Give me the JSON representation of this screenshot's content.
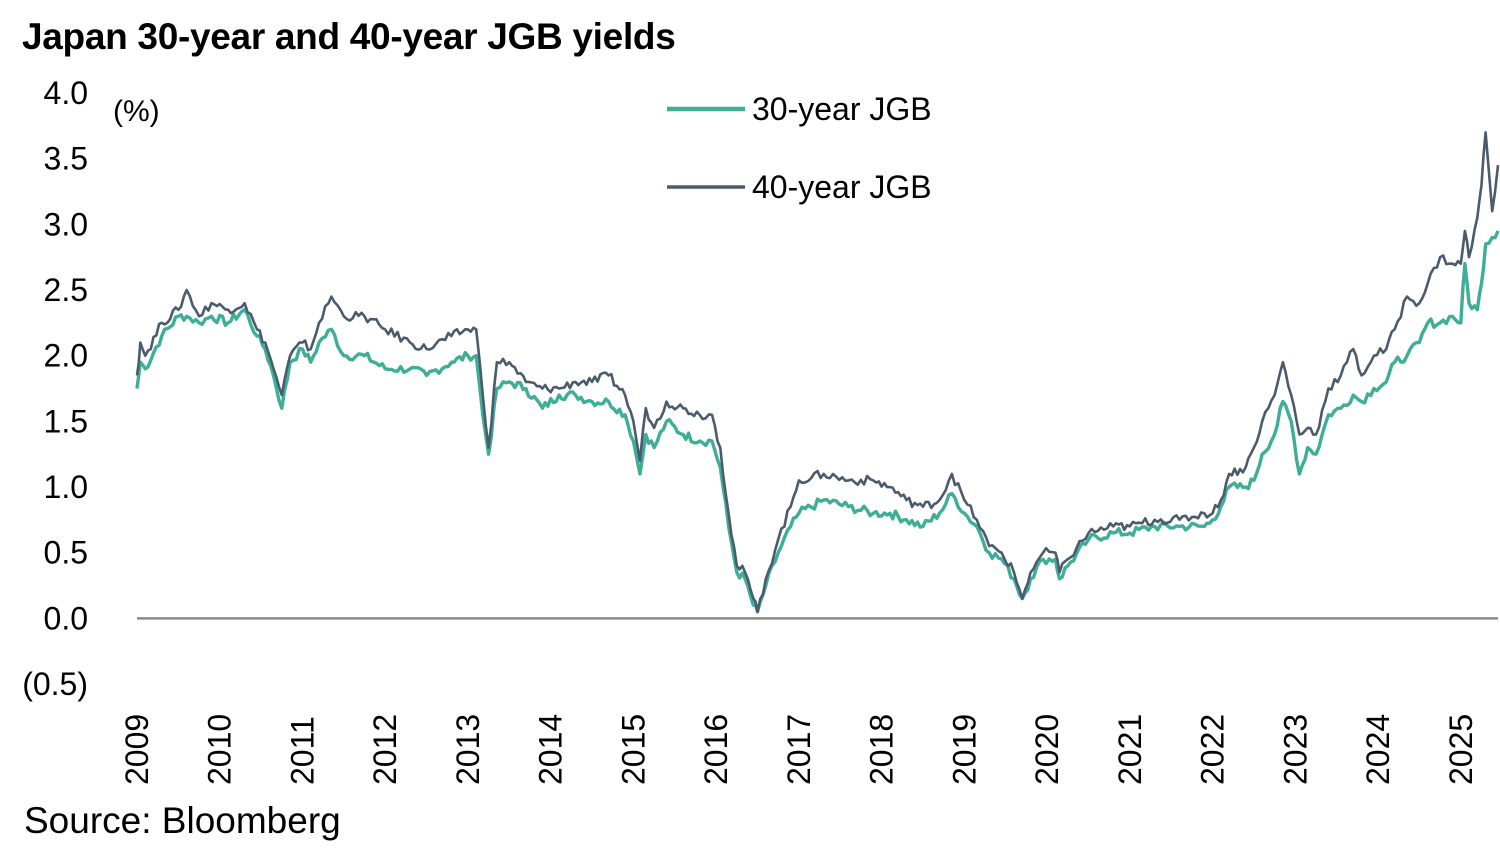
{
  "title": "Japan 30-year and 40-year JGB yields",
  "source": "Source: Bloomberg",
  "chart_data": {
    "type": "line",
    "title": "Japan 30-year and 40-year JGB yields",
    "ylabel": "(%)",
    "xlabel": "",
    "ylim": [
      -0.5,
      4.0
    ],
    "xlim": [
      2009.0,
      2025.45
    ],
    "y_ticks": [
      "4.0",
      "3.5",
      "3.0",
      "2.5",
      "2.0",
      "1.5",
      "1.0",
      "0.5",
      "0.0",
      "(0.5)"
    ],
    "y_tick_values": [
      4.0,
      3.5,
      3.0,
      2.5,
      2.0,
      1.5,
      1.0,
      0.5,
      0.0,
      -0.5
    ],
    "x_ticks": [
      "2009",
      "2010",
      "2011",
      "2012",
      "2013",
      "2014",
      "2015",
      "2016",
      "2017",
      "2018",
      "2019",
      "2020",
      "2021",
      "2022",
      "2023",
      "2024",
      "2025"
    ],
    "x_tick_values": [
      2009,
      2010,
      2011,
      2012,
      2013,
      2014,
      2015,
      2016,
      2017,
      2018,
      2019,
      2020,
      2021,
      2022,
      2023,
      2024,
      2025
    ],
    "grid": false,
    "legend_position": "top-center",
    "series": [
      {
        "name": "30-year JGB",
        "color": "#3fae96",
        "x": [
          2009.0,
          2009.04,
          2009.1,
          2009.3,
          2009.5,
          2009.6,
          2009.75,
          2009.9,
          2010.1,
          2010.3,
          2010.45,
          2010.55,
          2010.65,
          2010.75,
          2010.85,
          2011.0,
          2011.1,
          2011.2,
          2011.35,
          2011.5,
          2011.75,
          2012.0,
          2012.3,
          2012.5,
          2012.8,
          2013.0,
          2013.1,
          2013.18,
          2013.25,
          2013.35,
          2013.5,
          2013.7,
          2013.9,
          2014.1,
          2014.3,
          2014.5,
          2014.7,
          2014.9,
          2015.0,
          2015.08,
          2015.15,
          2015.25,
          2015.4,
          2015.6,
          2015.8,
          2015.95,
          2016.05,
          2016.15,
          2016.25,
          2016.35,
          2016.45,
          2016.5,
          2016.6,
          2016.75,
          2016.9,
          2017.0,
          2017.3,
          2017.6,
          2017.9,
          2018.1,
          2018.3,
          2018.5,
          2018.7,
          2018.85,
          2019.0,
          2019.15,
          2019.3,
          2019.45,
          2019.6,
          2019.7,
          2019.8,
          2019.95,
          2020.1,
          2020.15,
          2020.25,
          2020.5,
          2020.8,
          2021.0,
          2021.3,
          2021.6,
          2021.9,
          2022.0,
          2022.1,
          2022.2,
          2022.4,
          2022.5,
          2022.6,
          2022.75,
          2022.85,
          2022.95,
          2023.05,
          2023.15,
          2023.25,
          2023.4,
          2023.55,
          2023.7,
          2023.8,
          2023.95,
          2024.1,
          2024.2,
          2024.35,
          2024.5,
          2024.6,
          2024.75,
          2024.9,
          2025.0,
          2025.05,
          2025.1,
          2025.2,
          2025.25,
          2025.3,
          2025.38,
          2025.45
        ],
        "values": [
          1.75,
          1.95,
          1.9,
          2.15,
          2.3,
          2.3,
          2.25,
          2.3,
          2.25,
          2.35,
          2.15,
          2.05,
          1.85,
          1.6,
          1.95,
          2.05,
          1.95,
          2.1,
          2.2,
          2.0,
          2.0,
          1.9,
          1.9,
          1.85,
          1.95,
          2.0,
          2.0,
          1.55,
          1.25,
          1.75,
          1.8,
          1.75,
          1.6,
          1.7,
          1.7,
          1.65,
          1.65,
          1.55,
          1.35,
          1.1,
          1.4,
          1.3,
          1.5,
          1.4,
          1.35,
          1.35,
          1.15,
          0.7,
          0.35,
          0.3,
          0.1,
          0.05,
          0.25,
          0.5,
          0.7,
          0.8,
          0.9,
          0.85,
          0.8,
          0.8,
          0.75,
          0.7,
          0.8,
          0.95,
          0.8,
          0.7,
          0.5,
          0.45,
          0.3,
          0.15,
          0.3,
          0.45,
          0.45,
          0.3,
          0.4,
          0.6,
          0.65,
          0.65,
          0.7,
          0.7,
          0.7,
          0.75,
          0.85,
          1.0,
          1.0,
          1.05,
          1.25,
          1.4,
          1.65,
          1.5,
          1.1,
          1.3,
          1.25,
          1.55,
          1.6,
          1.7,
          1.65,
          1.75,
          1.8,
          1.95,
          2.0,
          2.1,
          2.25,
          2.25,
          2.3,
          2.25,
          2.7,
          2.4,
          2.35,
          2.55,
          2.85,
          2.9,
          2.95
        ]
      },
      {
        "name": "40-year JGB",
        "color": "#4b5b6e",
        "x": [
          2009.0,
          2009.04,
          2009.1,
          2009.3,
          2009.5,
          2009.6,
          2009.75,
          2009.9,
          2010.1,
          2010.3,
          2010.45,
          2010.55,
          2010.65,
          2010.75,
          2010.85,
          2011.0,
          2011.1,
          2011.2,
          2011.35,
          2011.5,
          2011.75,
          2012.0,
          2012.3,
          2012.5,
          2012.8,
          2013.0,
          2013.1,
          2013.18,
          2013.25,
          2013.35,
          2013.5,
          2013.7,
          2013.9,
          2014.1,
          2014.3,
          2014.5,
          2014.7,
          2014.9,
          2015.0,
          2015.08,
          2015.15,
          2015.25,
          2015.4,
          2015.6,
          2015.8,
          2015.95,
          2016.05,
          2016.15,
          2016.25,
          2016.35,
          2016.45,
          2016.5,
          2016.6,
          2016.75,
          2016.9,
          2017.0,
          2017.3,
          2017.6,
          2017.9,
          2018.1,
          2018.3,
          2018.5,
          2018.7,
          2018.85,
          2019.0,
          2019.15,
          2019.3,
          2019.45,
          2019.6,
          2019.7,
          2019.8,
          2019.95,
          2020.1,
          2020.15,
          2020.25,
          2020.5,
          2020.8,
          2021.0,
          2021.3,
          2021.6,
          2021.9,
          2022.0,
          2022.1,
          2022.2,
          2022.4,
          2022.5,
          2022.6,
          2022.75,
          2022.85,
          2022.95,
          2023.05,
          2023.15,
          2023.25,
          2023.4,
          2023.55,
          2023.7,
          2023.8,
          2023.95,
          2024.1,
          2024.2,
          2024.35,
          2024.5,
          2024.6,
          2024.75,
          2024.9,
          2025.0,
          2025.05,
          2025.1,
          2025.2,
          2025.25,
          2025.3,
          2025.38,
          2025.45
        ],
        "values": [
          1.85,
          2.1,
          2.0,
          2.25,
          2.35,
          2.5,
          2.3,
          2.4,
          2.35,
          2.4,
          2.2,
          2.1,
          1.9,
          1.7,
          2.0,
          2.1,
          2.05,
          2.25,
          2.45,
          2.3,
          2.3,
          2.2,
          2.1,
          2.05,
          2.15,
          2.2,
          2.2,
          1.7,
          1.3,
          1.95,
          1.95,
          1.8,
          1.75,
          1.75,
          1.8,
          1.8,
          1.85,
          1.7,
          1.5,
          1.2,
          1.6,
          1.45,
          1.65,
          1.6,
          1.55,
          1.55,
          1.3,
          0.8,
          0.4,
          0.35,
          0.15,
          0.05,
          0.3,
          0.6,
          0.85,
          1.05,
          1.1,
          1.05,
          1.05,
          1.0,
          0.9,
          0.85,
          0.9,
          1.1,
          0.9,
          0.75,
          0.55,
          0.5,
          0.35,
          0.15,
          0.35,
          0.5,
          0.5,
          0.35,
          0.45,
          0.65,
          0.7,
          0.7,
          0.75,
          0.75,
          0.8,
          0.8,
          0.9,
          1.1,
          1.15,
          1.3,
          1.5,
          1.7,
          1.95,
          1.7,
          1.4,
          1.45,
          1.4,
          1.75,
          1.85,
          2.05,
          1.85,
          2.0,
          2.05,
          2.2,
          2.45,
          2.4,
          2.55,
          2.75,
          2.7,
          2.7,
          2.95,
          2.75,
          3.05,
          3.3,
          3.7,
          3.1,
          3.45
        ]
      }
    ]
  }
}
